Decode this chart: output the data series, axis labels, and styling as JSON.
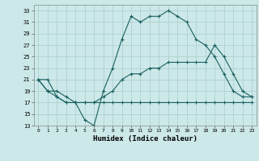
{
  "xlabel": "Humidex (Indice chaleur)",
  "background_color": "#cce8e8",
  "grid_color": "#aacccc",
  "line_color": "#1a6060",
  "xlim": [
    -0.5,
    23.5
  ],
  "ylim": [
    13,
    34
  ],
  "yticks": [
    13,
    15,
    17,
    19,
    21,
    23,
    25,
    27,
    29,
    31,
    33
  ],
  "xticks": [
    0,
    1,
    2,
    3,
    4,
    5,
    6,
    7,
    8,
    9,
    10,
    11,
    12,
    13,
    14,
    15,
    16,
    17,
    18,
    19,
    20,
    21,
    22,
    23
  ],
  "series": [
    {
      "x": [
        0,
        1,
        2,
        3,
        4,
        5,
        6,
        7,
        8,
        9,
        10,
        11,
        12,
        13,
        14,
        15,
        16,
        17,
        18,
        19,
        20,
        21,
        22,
        23
      ],
      "y": [
        21,
        21,
        18,
        17,
        17,
        14,
        13,
        19,
        23,
        28,
        32,
        31,
        32,
        32,
        33,
        32,
        31,
        28,
        27,
        25,
        22,
        19,
        18,
        18
      ]
    },
    {
      "x": [
        0,
        1,
        2,
        3,
        4,
        5,
        6,
        7,
        8,
        9,
        10,
        11,
        12,
        13,
        14,
        15,
        16,
        17,
        18,
        19,
        20,
        21,
        22,
        23
      ],
      "y": [
        21,
        19,
        18,
        17,
        17,
        17,
        17,
        17,
        17,
        17,
        17,
        17,
        17,
        17,
        17,
        17,
        17,
        17,
        17,
        17,
        17,
        17,
        17,
        17
      ]
    },
    {
      "x": [
        0,
        1,
        2,
        3,
        4,
        5,
        6,
        7,
        8,
        9,
        10,
        11,
        12,
        13,
        14,
        15,
        16,
        17,
        18,
        19,
        20,
        21,
        22,
        23
      ],
      "y": [
        21,
        19,
        19,
        18,
        17,
        17,
        17,
        18,
        19,
        21,
        22,
        22,
        23,
        23,
        24,
        24,
        24,
        24,
        24,
        27,
        25,
        22,
        19,
        18
      ]
    }
  ]
}
